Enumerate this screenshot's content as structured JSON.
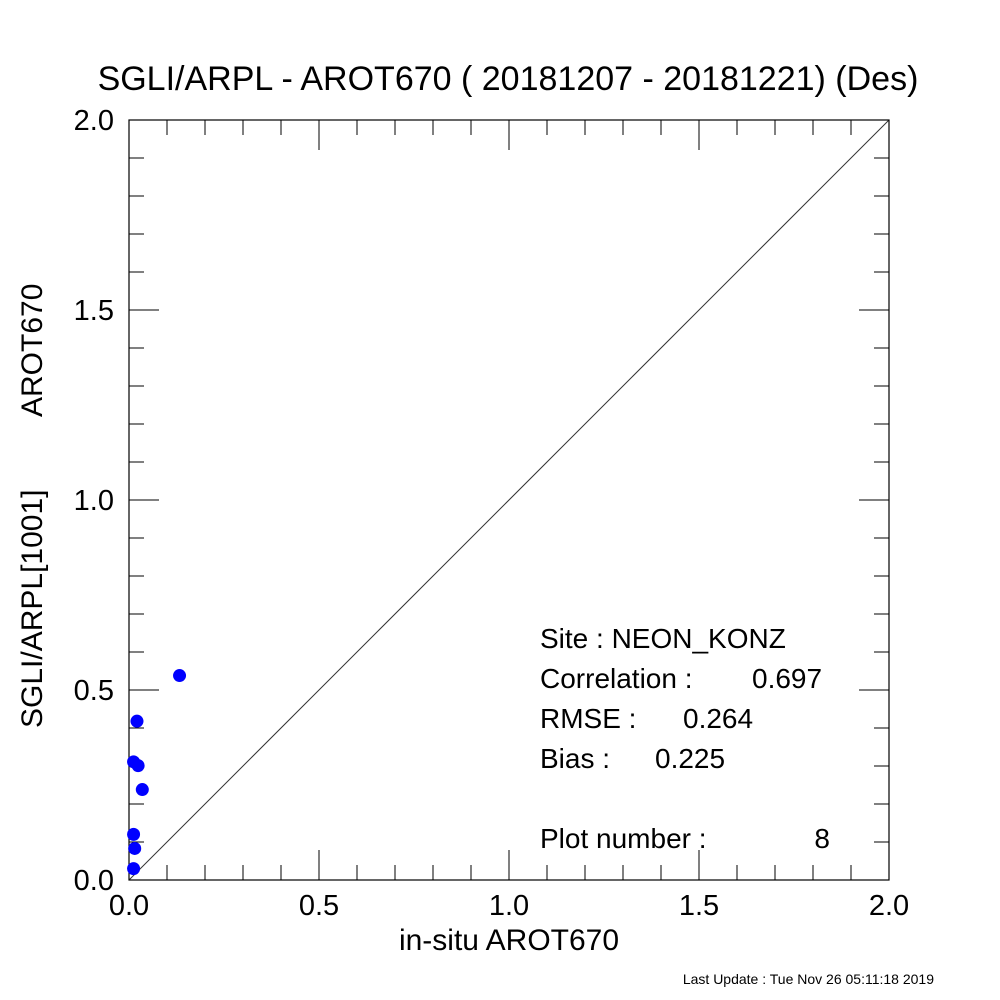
{
  "chart_data": {
    "type": "scatter",
    "title": "SGLI/ARPL - AROT670 ( 20181207 - 20181221) (Des)",
    "xlabel": "in-situ AROT670",
    "ylabel_left": "SGLI/ARPL[1001]",
    "ylabel_right": "AROT670",
    "xlim": [
      0.0,
      2.0
    ],
    "ylim": [
      0.0,
      2.0
    ],
    "x_ticks": [
      "0.0",
      "0.5",
      "1.0",
      "1.5",
      "2.0"
    ],
    "y_ticks": [
      "0.0",
      "0.5",
      "1.0",
      "1.5",
      "2.0"
    ],
    "x_tick_values": [
      0.0,
      0.5,
      1.0,
      1.5,
      2.0
    ],
    "y_tick_values": [
      0.0,
      0.5,
      1.0,
      1.5,
      2.0
    ],
    "minor_tick_step": 0.1,
    "grid": false,
    "reference_line": "1:1",
    "marker_color": "#0000ff",
    "points": [
      {
        "x": 0.133,
        "y": 0.538
      },
      {
        "x": 0.021,
        "y": 0.418
      },
      {
        "x": 0.012,
        "y": 0.311
      },
      {
        "x": 0.024,
        "y": 0.301
      },
      {
        "x": 0.035,
        "y": 0.238
      },
      {
        "x": 0.012,
        "y": 0.12
      },
      {
        "x": 0.015,
        "y": 0.083
      },
      {
        "x": 0.012,
        "y": 0.03
      }
    ]
  },
  "stats": {
    "site": "Site : NEON_KONZ",
    "correlation_label": "Correlation :",
    "correlation_value": "0.697",
    "rmse_label": "RMSE :",
    "rmse_value": "0.264",
    "bias_label": "Bias :",
    "bias_value": "0.225",
    "plot_number_label": "Plot number :",
    "plot_number_value": "8"
  },
  "footer": {
    "last_update": "Last Update : Tue Nov 26 05:11:18 2019"
  }
}
